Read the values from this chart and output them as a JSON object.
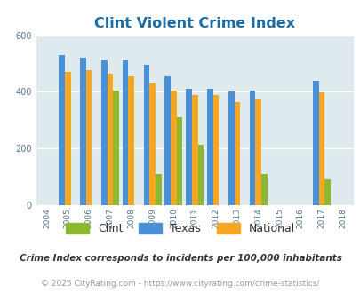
{
  "title": "Clint Violent Crime Index",
  "years": [
    2004,
    2005,
    2006,
    2007,
    2008,
    2009,
    2010,
    2011,
    2012,
    2013,
    2014,
    2015,
    2016,
    2017,
    2018
  ],
  "clint": [
    null,
    null,
    null,
    405,
    null,
    110,
    310,
    213,
    null,
    null,
    110,
    null,
    null,
    90,
    null
  ],
  "texas": [
    null,
    530,
    520,
    510,
    510,
    495,
    455,
    410,
    410,
    400,
    405,
    null,
    null,
    440,
    null
  ],
  "national": [
    null,
    470,
    475,
    465,
    455,
    430,
    405,
    390,
    390,
    365,
    373,
    null,
    null,
    397,
    null
  ],
  "clint_color": "#8db832",
  "texas_color": "#4a90d9",
  "national_color": "#f5a623",
  "bg_color": "#deeaee",
  "title_color": "#1a6ea8",
  "ylim": [
    0,
    600
  ],
  "yticks": [
    0,
    200,
    400,
    600
  ],
  "subtitle": "Crime Index corresponds to incidents per 100,000 inhabitants",
  "footer": "© 2025 CityRating.com - https://www.cityrating.com/crime-statistics/",
  "bar_width": 0.28
}
